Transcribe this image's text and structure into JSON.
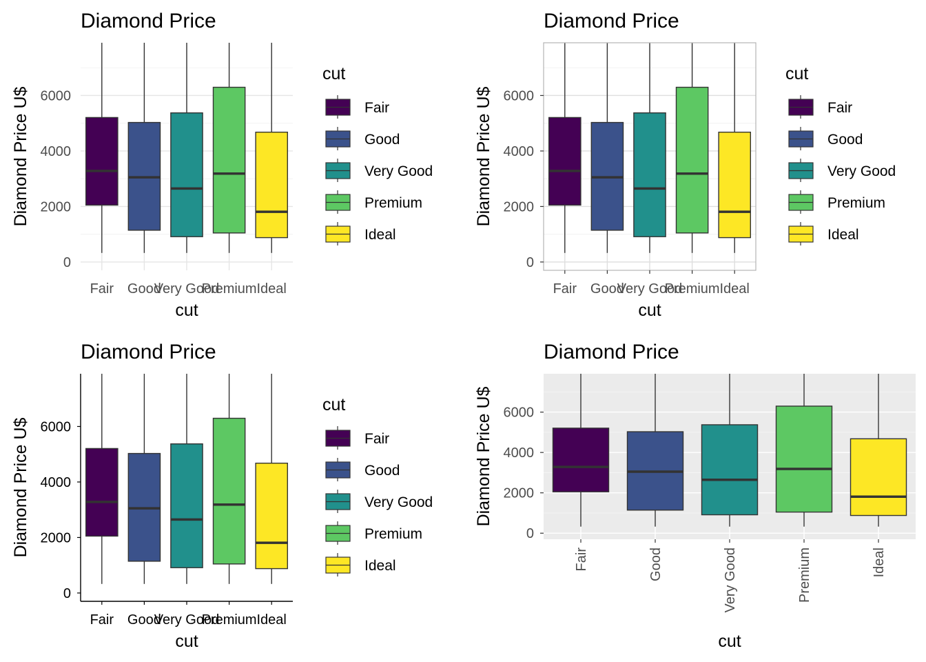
{
  "chart_data": [
    {
      "type": "box",
      "theme": "minimal",
      "title": "Diamond Price",
      "xlabel": "cut",
      "ylabel": "Diamond Price U$",
      "categories": [
        "Fair",
        "Good",
        "Very Good",
        "Premium",
        "Ideal"
      ],
      "colors": [
        "#440154",
        "#3b528b",
        "#21908c",
        "#5dc863",
        "#fde725"
      ],
      "boxes": [
        {
          "q1": 2050,
          "median": 3282,
          "q3": 5206
        },
        {
          "q1": 1145,
          "median": 3050,
          "q3": 5028
        },
        {
          "q1": 912,
          "median": 2648,
          "q3": 5373
        },
        {
          "q1": 1046,
          "median": 3185,
          "q3": 6296
        },
        {
          "q1": 878,
          "median": 1810,
          "q3": 4678
        }
      ],
      "yticks": [
        0,
        2000,
        4000,
        6000
      ],
      "ylim": [
        -300,
        7900
      ],
      "x_tick_rotation": 0,
      "legend": {
        "title": "cut",
        "position": "right"
      }
    },
    {
      "type": "box",
      "theme": "light",
      "title": "Diamond Price",
      "xlabel": "cut",
      "ylabel": "Diamond Price U$",
      "categories": [
        "Fair",
        "Good",
        "Very Good",
        "Premium",
        "Ideal"
      ],
      "colors": [
        "#440154",
        "#3b528b",
        "#21908c",
        "#5dc863",
        "#fde725"
      ],
      "boxes": [
        {
          "q1": 2050,
          "median": 3282,
          "q3": 5206
        },
        {
          "q1": 1145,
          "median": 3050,
          "q3": 5028
        },
        {
          "q1": 912,
          "median": 2648,
          "q3": 5373
        },
        {
          "q1": 1046,
          "median": 3185,
          "q3": 6296
        },
        {
          "q1": 878,
          "median": 1810,
          "q3": 4678
        }
      ],
      "yticks": [
        0,
        2000,
        4000,
        6000
      ],
      "ylim": [
        -300,
        7900
      ],
      "x_tick_rotation": 0,
      "legend": {
        "title": "cut",
        "position": "right"
      }
    },
    {
      "type": "box",
      "theme": "classic",
      "title": "Diamond Price",
      "xlabel": "cut",
      "ylabel": "Diamond Price U$",
      "categories": [
        "Fair",
        "Good",
        "Very Good",
        "Premium",
        "Ideal"
      ],
      "colors": [
        "#440154",
        "#3b528b",
        "#21908c",
        "#5dc863",
        "#fde725"
      ],
      "boxes": [
        {
          "q1": 2050,
          "median": 3282,
          "q3": 5206
        },
        {
          "q1": 1145,
          "median": 3050,
          "q3": 5028
        },
        {
          "q1": 912,
          "median": 2648,
          "q3": 5373
        },
        {
          "q1": 1046,
          "median": 3185,
          "q3": 6296
        },
        {
          "q1": 878,
          "median": 1810,
          "q3": 4678
        }
      ],
      "yticks": [
        0,
        2000,
        4000,
        6000
      ],
      "ylim": [
        -300,
        7900
      ],
      "x_tick_rotation": 0,
      "legend": {
        "title": "cut",
        "position": "right"
      }
    },
    {
      "type": "box",
      "theme": "grey",
      "title": "Diamond Price",
      "xlabel": "cut",
      "ylabel": "Diamond Price U$",
      "categories": [
        "Fair",
        "Good",
        "Very Good",
        "Premium",
        "Ideal"
      ],
      "colors": [
        "#440154",
        "#3b528b",
        "#21908c",
        "#5dc863",
        "#fde725"
      ],
      "boxes": [
        {
          "q1": 2050,
          "median": 3282,
          "q3": 5206
        },
        {
          "q1": 1145,
          "median": 3050,
          "q3": 5028
        },
        {
          "q1": 912,
          "median": 2648,
          "q3": 5373
        },
        {
          "q1": 1046,
          "median": 3185,
          "q3": 6296
        },
        {
          "q1": 878,
          "median": 1810,
          "q3": 4678
        }
      ],
      "yticks": [
        0,
        2000,
        4000,
        6000
      ],
      "ylim": [
        -300,
        7900
      ],
      "x_tick_rotation": 90,
      "legend": {
        "title": "cut",
        "position": "none"
      }
    }
  ]
}
